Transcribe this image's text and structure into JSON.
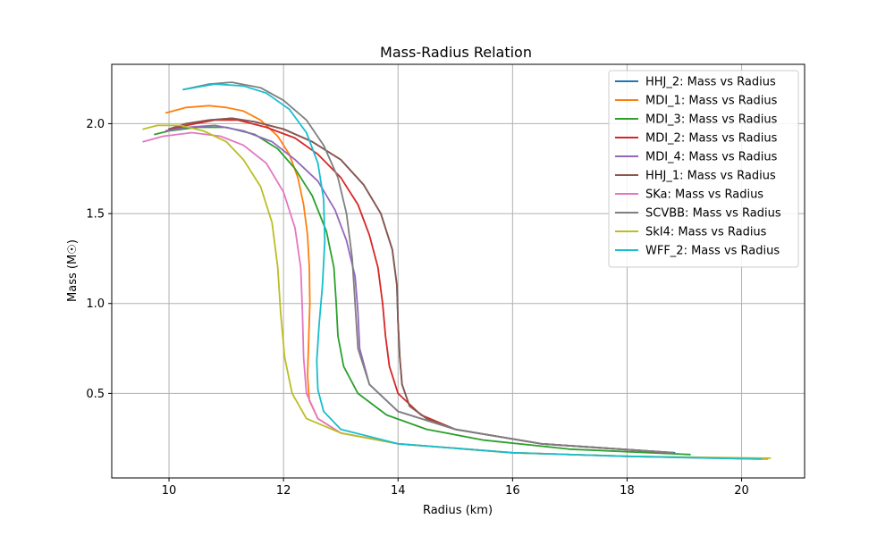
{
  "chart_data": {
    "type": "line",
    "title": "Mass-Radius Relation",
    "xlabel": "Radius (km)",
    "ylabel": "Mass (M☉)",
    "xlim": [
      9.0,
      21.1
    ],
    "ylim": [
      0.03,
      2.33
    ],
    "xticks": [
      10,
      12,
      14,
      16,
      18,
      20
    ],
    "xtick_labels": [
      "10",
      "12",
      "14",
      "16",
      "18",
      "20"
    ],
    "yticks": [
      0.5,
      1.0,
      1.5,
      2.0
    ],
    "ytick_labels": [
      "0.5",
      "1.0",
      "1.5",
      "2.0"
    ],
    "grid": true,
    "legend_position": "top-right",
    "series": [
      {
        "name": "HHJ_2: Mass vs Radius",
        "color": "#1f77b4",
        "x": [
          18.83,
          16.5,
          15.0,
          14.5,
          14.2,
          14.07,
          14.03,
          14.0,
          13.98,
          13.9,
          13.7,
          13.4,
          13.0,
          12.5,
          12.0,
          11.5,
          11.1,
          10.7,
          10.3,
          10.0
        ],
        "y": [
          0.17,
          0.22,
          0.3,
          0.36,
          0.43,
          0.55,
          0.7,
          0.9,
          1.1,
          1.3,
          1.5,
          1.66,
          1.8,
          1.9,
          1.97,
          2.01,
          2.03,
          2.02,
          2.0,
          1.97
        ]
      },
      {
        "name": "MDI_1: Mass vs Radius",
        "color": "#ff7f0e",
        "x": [
          20.45,
          18.0,
          16.0,
          14.0,
          13.0,
          12.6,
          12.45,
          12.42,
          12.44,
          12.46,
          12.45,
          12.42,
          12.35,
          12.25,
          12.1,
          11.9,
          11.6,
          11.3,
          11.0,
          10.7,
          10.3,
          9.95
        ],
        "y": [
          0.135,
          0.15,
          0.17,
          0.22,
          0.28,
          0.36,
          0.46,
          0.6,
          0.8,
          1.0,
          1.2,
          1.38,
          1.55,
          1.7,
          1.83,
          1.93,
          2.02,
          2.07,
          2.09,
          2.1,
          2.09,
          2.06
        ]
      },
      {
        "name": "MDI_3: Mass vs Radius",
        "color": "#2ca02c",
        "x": [
          19.1,
          17.0,
          15.5,
          14.5,
          13.8,
          13.3,
          13.05,
          12.95,
          12.92,
          12.88,
          12.75,
          12.5,
          12.2,
          11.9,
          11.5,
          11.0,
          10.5,
          10.0,
          9.75
        ],
        "y": [
          0.16,
          0.19,
          0.24,
          0.3,
          0.38,
          0.5,
          0.65,
          0.82,
          1.0,
          1.2,
          1.4,
          1.6,
          1.75,
          1.86,
          1.94,
          1.98,
          1.98,
          1.96,
          1.94
        ]
      },
      {
        "name": "MDI_2: Mass vs Radius",
        "color": "#d62728",
        "x": [
          18.75,
          16.5,
          15.0,
          14.4,
          14.0,
          13.85,
          13.78,
          13.73,
          13.65,
          13.5,
          13.3,
          13.0,
          12.6,
          12.2,
          11.7,
          11.2,
          10.8,
          10.3,
          9.95
        ],
        "y": [
          0.17,
          0.22,
          0.3,
          0.38,
          0.5,
          0.65,
          0.82,
          1.0,
          1.2,
          1.38,
          1.55,
          1.7,
          1.83,
          1.92,
          1.98,
          2.02,
          2.02,
          1.99,
          1.96
        ]
      },
      {
        "name": "MDI_4: Mass vs Radius",
        "color": "#9467bd",
        "x": [
          18.8,
          16.5,
          15.0,
          14.0,
          13.5,
          13.33,
          13.3,
          13.25,
          13.1,
          12.9,
          12.6,
          12.2,
          11.8,
          11.3,
          10.8,
          10.3,
          9.95
        ],
        "y": [
          0.17,
          0.22,
          0.3,
          0.4,
          0.55,
          0.75,
          0.95,
          1.15,
          1.35,
          1.52,
          1.68,
          1.8,
          1.9,
          1.96,
          1.99,
          1.98,
          1.96
        ]
      },
      {
        "name": "HHJ_1: Mass vs Radius",
        "color": "#8c564b",
        "x": [
          18.8,
          16.5,
          15.0,
          14.5,
          14.2,
          14.07,
          14.03,
          14.0,
          13.98,
          13.9,
          13.7,
          13.4,
          13.0,
          12.5,
          12.0,
          11.5,
          11.1,
          10.7,
          10.3,
          10.0
        ],
        "y": [
          0.17,
          0.22,
          0.3,
          0.36,
          0.43,
          0.55,
          0.7,
          0.9,
          1.1,
          1.3,
          1.5,
          1.66,
          1.8,
          1.9,
          1.97,
          2.01,
          2.03,
          2.02,
          2.0,
          1.97
        ]
      },
      {
        "name": "SKa: Mass vs Radius",
        "color": "#e377c2",
        "x": [
          20.3,
          18.0,
          16.0,
          14.0,
          13.0,
          12.6,
          12.4,
          12.35,
          12.33,
          12.3,
          12.2,
          12.0,
          11.7,
          11.3,
          10.9,
          10.4,
          9.9,
          9.55
        ],
        "y": [
          0.135,
          0.15,
          0.17,
          0.22,
          0.28,
          0.36,
          0.5,
          0.7,
          0.95,
          1.2,
          1.42,
          1.62,
          1.78,
          1.88,
          1.93,
          1.95,
          1.93,
          1.9
        ]
      },
      {
        "name": "SCVBB: Mass vs Radius",
        "color": "#7f7f7f",
        "x": [
          18.8,
          16.5,
          15.0,
          14.0,
          13.5,
          13.3,
          13.25,
          13.2,
          13.1,
          12.95,
          12.7,
          12.4,
          12.0,
          11.6,
          11.1,
          10.7,
          10.25
        ],
        "y": [
          0.17,
          0.22,
          0.3,
          0.4,
          0.55,
          0.75,
          1.0,
          1.25,
          1.5,
          1.7,
          1.88,
          2.02,
          2.13,
          2.2,
          2.23,
          2.22,
          2.19
        ]
      },
      {
        "name": "SkI4: Mass vs Radius",
        "color": "#bcbd22",
        "x": [
          20.5,
          18.0,
          16.0,
          14.0,
          13.0,
          12.4,
          12.15,
          12.02,
          11.95,
          11.9,
          11.8,
          11.6,
          11.3,
          11.0,
          10.6,
          10.2,
          9.8,
          9.55
        ],
        "y": [
          0.14,
          0.15,
          0.17,
          0.22,
          0.28,
          0.36,
          0.5,
          0.7,
          0.95,
          1.2,
          1.45,
          1.65,
          1.8,
          1.9,
          1.96,
          1.99,
          1.99,
          1.97
        ]
      },
      {
        "name": "WFF_2: Mass vs Radius",
        "color": "#17becf",
        "x": [
          20.35,
          18.0,
          16.0,
          14.0,
          13.0,
          12.7,
          12.6,
          12.58,
          12.62,
          12.68,
          12.72,
          12.7,
          12.6,
          12.4,
          12.1,
          11.7,
          11.3,
          10.8,
          10.25
        ],
        "y": [
          0.135,
          0.15,
          0.17,
          0.22,
          0.3,
          0.4,
          0.52,
          0.68,
          0.88,
          1.1,
          1.35,
          1.58,
          1.78,
          1.95,
          2.08,
          2.17,
          2.21,
          2.22,
          2.19
        ]
      }
    ]
  }
}
